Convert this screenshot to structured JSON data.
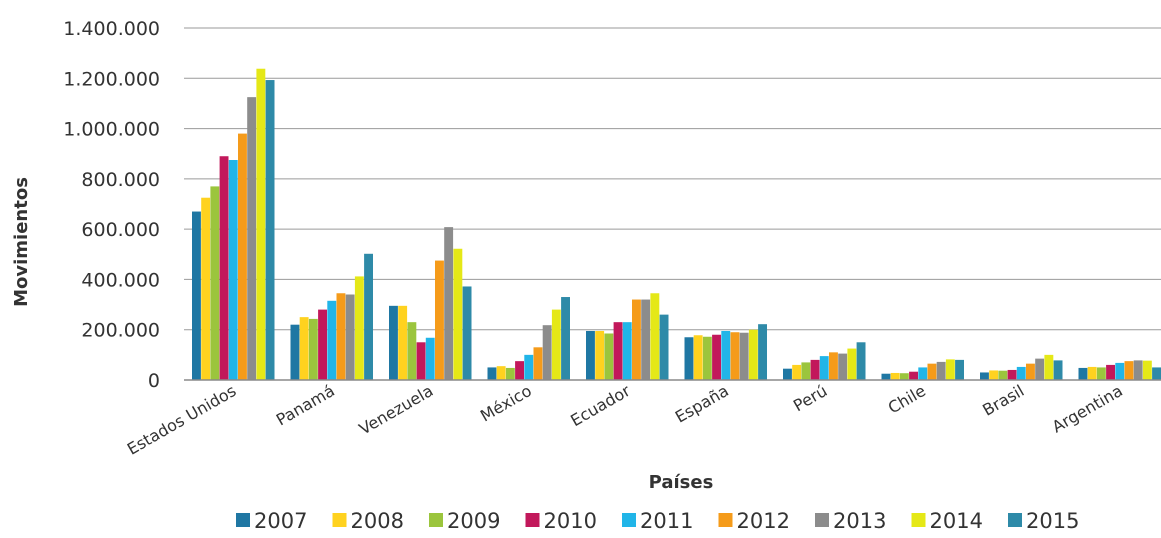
{
  "chart_data": {
    "type": "bar",
    "xlabel": "Países",
    "ylabel": "Movimientos",
    "ylim": [
      0,
      1400000
    ],
    "yticks": [
      0,
      200000,
      400000,
      600000,
      800000,
      1000000,
      1200000,
      1400000
    ],
    "ytick_labels": [
      "0",
      "200.000",
      "400.000",
      "600.000",
      "800.000",
      "1.000.000",
      "1.200.000",
      "1.400.000"
    ],
    "grid": true,
    "legend_position": "bottom",
    "categories": [
      "Estados Unidos",
      "Panamá",
      "Venezuela",
      "México",
      "Ecuador",
      "España",
      "Perú",
      "Chile",
      "Brasil",
      "Argentina"
    ],
    "series": [
      {
        "name": "2007",
        "color": "#1F77A3",
        "values": [
          670000,
          220000,
          295000,
          50000,
          195000,
          170000,
          45000,
          25000,
          30000,
          48000
        ]
      },
      {
        "name": "2008",
        "color": "#FFD21F",
        "values": [
          725000,
          250000,
          295000,
          55000,
          195000,
          178000,
          60000,
          28000,
          38000,
          52000
        ]
      },
      {
        "name": "2009",
        "color": "#9BC53D",
        "values": [
          770000,
          243000,
          230000,
          48000,
          185000,
          172000,
          70000,
          27000,
          37000,
          50000
        ]
      },
      {
        "name": "2010",
        "color": "#C2185B",
        "values": [
          890000,
          280000,
          150000,
          75000,
          230000,
          180000,
          80000,
          33000,
          40000,
          60000
        ]
      },
      {
        "name": "2011",
        "color": "#21B5E8",
        "values": [
          875000,
          315000,
          168000,
          100000,
          230000,
          195000,
          95000,
          50000,
          52000,
          68000
        ]
      },
      {
        "name": "2012",
        "color": "#F59B1A",
        "values": [
          980000,
          345000,
          475000,
          130000,
          320000,
          190000,
          110000,
          65000,
          65000,
          75000
        ]
      },
      {
        "name": "2013",
        "color": "#8C8C8C",
        "values": [
          1125000,
          340000,
          608000,
          218000,
          320000,
          188000,
          105000,
          72000,
          85000,
          78000
        ]
      },
      {
        "name": "2014",
        "color": "#E5E817",
        "values": [
          1238000,
          412000,
          522000,
          280000,
          345000,
          200000,
          125000,
          82000,
          100000,
          77000
        ]
      },
      {
        "name": "2015",
        "color": "#2E8AA8",
        "values": [
          1193000,
          502000,
          372000,
          330000,
          260000,
          222000,
          150000,
          80000,
          78000,
          50000
        ]
      }
    ]
  }
}
